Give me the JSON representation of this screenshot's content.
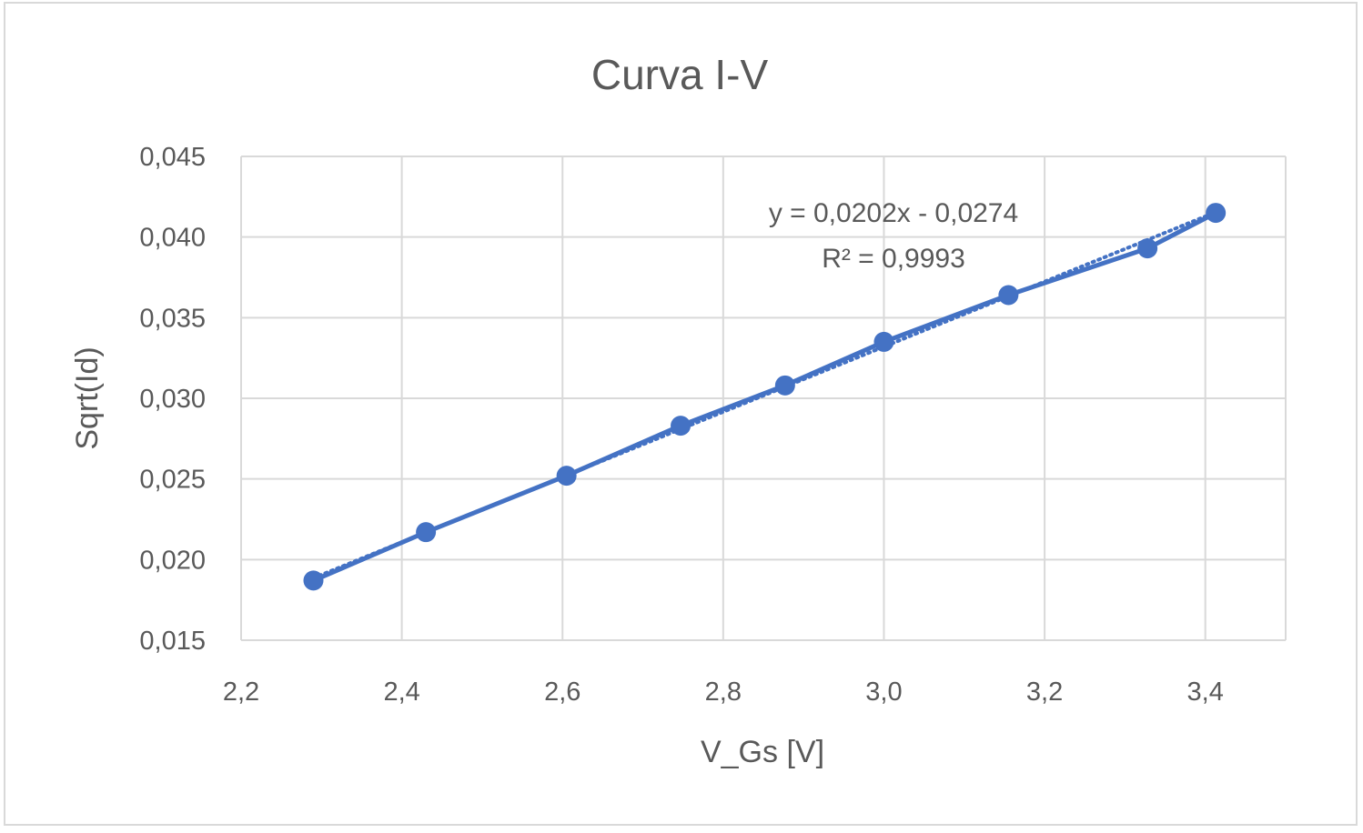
{
  "chart_data": {
    "type": "scatter",
    "title": "Curva I-V",
    "xlabel": "V_Gs [V]",
    "ylabel": "Sqrt(Id)",
    "xlim": [
      2.2,
      3.5
    ],
    "ylim": [
      0.015,
      0.045
    ],
    "x_ticks": [
      "2,2",
      "2,4",
      "2,6",
      "2,8",
      "3,0",
      "3,2",
      "3,4"
    ],
    "y_ticks": [
      "0,015",
      "0,020",
      "0,025",
      "0,030",
      "0,035",
      "0,040",
      "0,045"
    ],
    "grid": true,
    "series": [
      {
        "color": "#4472c4",
        "points": [
          {
            "x": 2.29,
            "y": 0.0187
          },
          {
            "x": 2.43,
            "y": 0.0217
          },
          {
            "x": 2.605,
            "y": 0.0252
          },
          {
            "x": 2.747,
            "y": 0.0283
          },
          {
            "x": 2.877,
            "y": 0.0308
          },
          {
            "x": 3.0,
            "y": 0.0335
          },
          {
            "x": 3.155,
            "y": 0.0364
          },
          {
            "x": 3.328,
            "y": 0.0393
          },
          {
            "x": 3.413,
            "y": 0.0415
          }
        ]
      }
    ],
    "trendline": {
      "slope": 0.0202,
      "intercept": -0.0274,
      "style": "dotted",
      "equation_label": "y = 0,0202x - 0,0274",
      "r2_label": "R² = 0,9993"
    }
  }
}
